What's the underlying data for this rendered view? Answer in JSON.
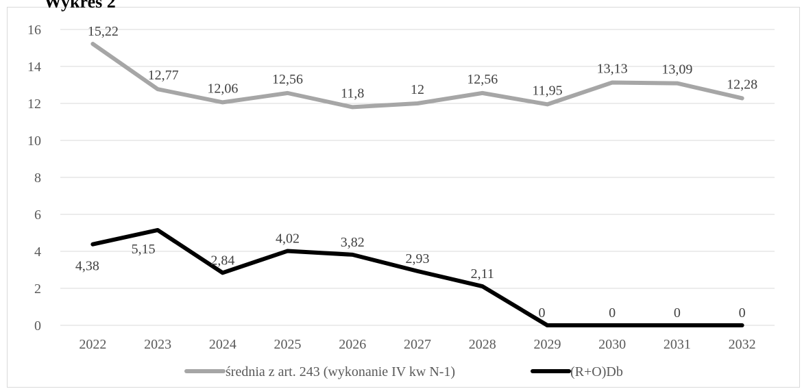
{
  "chart_data": {
    "type": "line",
    "title": "Wykres 2",
    "categories": [
      "2022",
      "2023",
      "2024",
      "2025",
      "2026",
      "2027",
      "2028",
      "2029",
      "2030",
      "2031",
      "2032"
    ],
    "series": [
      {
        "name": "średnia z art. 243 (wykonanie IV kw N-1)",
        "values": [
          15.22,
          12.77,
          12.06,
          12.56,
          11.8,
          12,
          12.56,
          11.95,
          13.13,
          13.09,
          12.28
        ],
        "labels": [
          "15,22",
          "12,77",
          "12,06",
          "12,56",
          "11,8",
          "12",
          "12,56",
          "11,95",
          "13,13",
          "13,09",
          "12,28"
        ],
        "color": "#a6a6a6"
      },
      {
        "name": "(R+O)Db",
        "values": [
          4.38,
          5.15,
          2.84,
          4.02,
          3.82,
          2.93,
          2.11,
          0,
          0,
          0,
          0
        ],
        "labels": [
          "4,38",
          "5,15",
          "2,84",
          "4,02",
          "3,82",
          "2,93",
          "2,11",
          "0",
          "0",
          "0",
          "0"
        ],
        "color": "#000000"
      }
    ],
    "ylim": [
      0,
      16
    ],
    "yticks": [
      "0",
      "2",
      "4",
      "6",
      "8",
      "10",
      "12",
      "14",
      "16"
    ],
    "grid": true,
    "legend": "bottom",
    "gridline_color": "#d9d9d9"
  }
}
